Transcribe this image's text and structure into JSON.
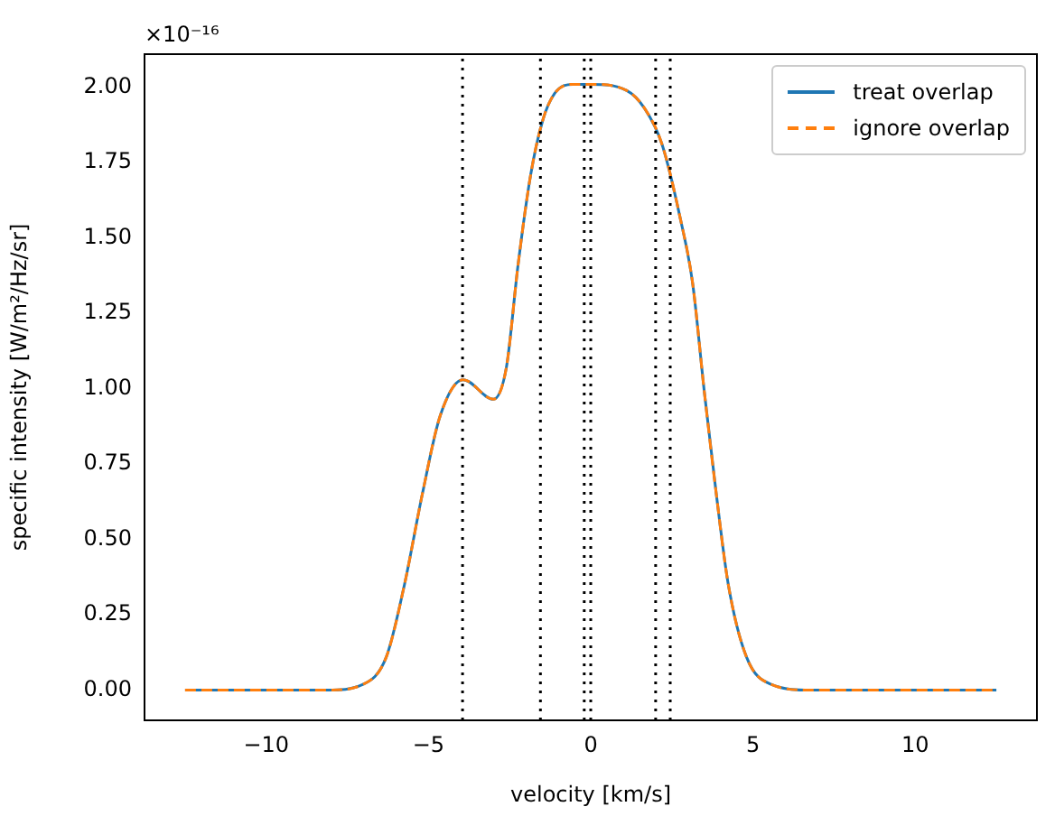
{
  "chart_data": {
    "type": "line",
    "xlabel": "velocity [km/s]",
    "ylabel": "specific intensity [W/m²/Hz/sr]",
    "annotations": [
      "×10⁻¹⁶"
    ],
    "x": [
      -12.5,
      -10,
      -8.13,
      -7.0,
      -6.3,
      -5.74,
      -5.19,
      -4.64,
      -3.93,
      -3.0,
      -2.6,
      -2.24,
      -1.85,
      -1.48,
      -1.11,
      -0.55,
      0.0,
      1.1,
      1.66,
      2.2,
      2.75,
      3.14,
      3.5,
      3.87,
      4.24,
      4.8,
      5.54,
      6.8,
      10,
      12.5
    ],
    "series": [
      {
        "name": "treat overlap",
        "color": "#1f77b4",
        "line_style": "solid",
        "values": [
          0,
          0,
          0,
          0.02,
          0.11,
          0.35,
          0.65,
          0.91,
          1.03,
          0.965,
          1.07,
          1.41,
          1.71,
          1.89,
          1.98,
          2.01,
          2.01,
          1.99,
          1.93,
          1.81,
          1.57,
          1.35,
          0.99,
          0.65,
          0.35,
          0.11,
          0.02,
          0,
          0,
          0
        ]
      },
      {
        "name": "ignore overlap",
        "color": "#ff7f0e",
        "line_style": "dashed",
        "values": [
          0,
          0,
          0,
          0.02,
          0.11,
          0.35,
          0.65,
          0.91,
          1.03,
          0.965,
          1.07,
          1.41,
          1.71,
          1.89,
          1.98,
          2.01,
          2.01,
          1.99,
          1.93,
          1.81,
          1.57,
          1.35,
          0.99,
          0.65,
          0.35,
          0.11,
          0.02,
          0,
          0,
          0
        ]
      }
    ],
    "xlim": [
      -13.75,
      13.75
    ],
    "xticks": [
      {
        "value": -10,
        "label": "−10"
      },
      {
        "value": -5,
        "label": "−5"
      },
      0,
      5,
      10
    ],
    "ylim": [
      -0.1,
      2.11
    ],
    "yticks": [
      {
        "value": 0,
        "label": "0.00"
      },
      {
        "value": 0.25,
        "label": "0.25"
      },
      {
        "value": 0.5,
        "label": "0.50"
      },
      {
        "value": 0.75,
        "label": "0.75"
      },
      {
        "value": 1,
        "label": "1.00"
      },
      {
        "value": 1.25,
        "label": "1.25"
      },
      {
        "value": 1.5,
        "label": "1.50"
      },
      {
        "value": 1.75,
        "label": "1.75"
      },
      {
        "value": 2,
        "label": "2.00"
      }
    ],
    "ref_lines": [
      {
        "axis": "x",
        "value": -3.95,
        "color": "#000000",
        "line_style": "dotted"
      },
      {
        "axis": "x",
        "value": -1.55,
        "color": "#000000",
        "line_style": "dotted"
      },
      {
        "axis": "x",
        "value": -0.2,
        "color": "#000000",
        "line_style": "dotted"
      },
      {
        "axis": "x",
        "value": 0,
        "color": "#000000",
        "line_style": "dotted"
      },
      {
        "axis": "x",
        "value": 2.0,
        "color": "#000000",
        "line_style": "dotted"
      },
      {
        "axis": "x",
        "value": 2.45,
        "color": "#000000",
        "line_style": "dotted"
      }
    ],
    "grid": false,
    "legend": "top right",
    "marker": "none"
  }
}
